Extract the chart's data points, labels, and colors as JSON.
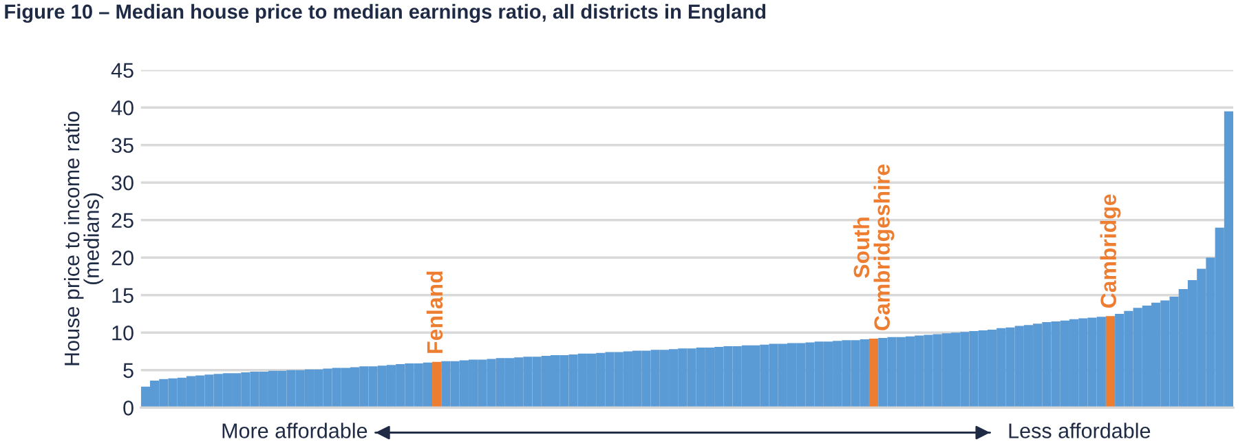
{
  "chart_data": {
    "type": "bar",
    "title": "Figure 10 – Median house price to median earnings ratio, all districts in England",
    "ylabel": "House price to income ratio\n(medians)",
    "categories": [
      null,
      null,
      null,
      null,
      null,
      null,
      null,
      null,
      null,
      null,
      null,
      null,
      null,
      null,
      null,
      null,
      null,
      null,
      null,
      null,
      null,
      null,
      null,
      null,
      null,
      null,
      null,
      null,
      null,
      null,
      null,
      null,
      null,
      null,
      null,
      null,
      null,
      null,
      null,
      null,
      null,
      null,
      null,
      null,
      null,
      null,
      null,
      null,
      null,
      null,
      null,
      null,
      null,
      null,
      null,
      null,
      null,
      null,
      null,
      null,
      null,
      null,
      null,
      null,
      null,
      null,
      null,
      null,
      null,
      null,
      null,
      null,
      null,
      null,
      null,
      null,
      null,
      null,
      null,
      null,
      null,
      null,
      null,
      null,
      null,
      null,
      null,
      null,
      null,
      null,
      null,
      null,
      null,
      null,
      null,
      null,
      null,
      null,
      null,
      null,
      null,
      null,
      null,
      null,
      null,
      null,
      null,
      null,
      null,
      null,
      null,
      null,
      null,
      null,
      null,
      null,
      null,
      null,
      null,
      null
    ],
    "values": [
      2.8,
      3.6,
      3.8,
      3.9,
      4.0,
      4.2,
      4.3,
      4.4,
      4.5,
      4.6,
      4.6,
      4.7,
      4.8,
      4.8,
      4.9,
      4.9,
      5.0,
      5.0,
      5.1,
      5.1,
      5.2,
      5.3,
      5.3,
      5.4,
      5.5,
      5.5,
      5.6,
      5.7,
      5.8,
      5.9,
      5.9,
      6.0,
      6.1,
      6.2,
      6.2,
      6.3,
      6.4,
      6.4,
      6.5,
      6.6,
      6.6,
      6.7,
      6.8,
      6.8,
      6.9,
      7.0,
      7.0,
      7.1,
      7.2,
      7.2,
      7.3,
      7.4,
      7.4,
      7.5,
      7.6,
      7.6,
      7.7,
      7.7,
      7.8,
      7.9,
      7.9,
      8.0,
      8.0,
      8.1,
      8.2,
      8.2,
      8.3,
      8.3,
      8.4,
      8.5,
      8.5,
      8.6,
      8.6,
      8.7,
      8.8,
      8.8,
      8.9,
      9.0,
      9.0,
      9.1,
      9.2,
      9.3,
      9.4,
      9.4,
      9.5,
      9.6,
      9.7,
      9.8,
      9.9,
      10.0,
      10.1,
      10.2,
      10.3,
      10.4,
      10.6,
      10.7,
      10.9,
      11.0,
      11.2,
      11.4,
      11.5,
      11.6,
      11.8,
      11.9,
      12.0,
      12.1,
      12.2,
      12.5,
      12.9,
      13.3,
      13.6,
      14.0,
      14.3,
      14.8,
      15.8,
      17.0,
      18.5,
      20.0,
      24.0,
      39.5
    ],
    "colors": [
      "#5b9bd5",
      "#5b9bd5",
      "#5b9bd5",
      "#5b9bd5",
      "#5b9bd5",
      "#5b9bd5",
      "#5b9bd5",
      "#5b9bd5",
      "#5b9bd5",
      "#5b9bd5",
      "#5b9bd5",
      "#5b9bd5",
      "#5b9bd5",
      "#5b9bd5",
      "#5b9bd5",
      "#5b9bd5",
      "#5b9bd5",
      "#5b9bd5",
      "#5b9bd5",
      "#5b9bd5",
      "#5b9bd5",
      "#5b9bd5",
      "#5b9bd5",
      "#5b9bd5",
      "#5b9bd5",
      "#5b9bd5",
      "#5b9bd5",
      "#5b9bd5",
      "#5b9bd5",
      "#5b9bd5",
      "#5b9bd5",
      "#5b9bd5",
      "#ed7d31",
      "#5b9bd5",
      "#5b9bd5",
      "#5b9bd5",
      "#5b9bd5",
      "#5b9bd5",
      "#5b9bd5",
      "#5b9bd5",
      "#5b9bd5",
      "#5b9bd5",
      "#5b9bd5",
      "#5b9bd5",
      "#5b9bd5",
      "#5b9bd5",
      "#5b9bd5",
      "#5b9bd5",
      "#5b9bd5",
      "#5b9bd5",
      "#5b9bd5",
      "#5b9bd5",
      "#5b9bd5",
      "#5b9bd5",
      "#5b9bd5",
      "#5b9bd5",
      "#5b9bd5",
      "#5b9bd5",
      "#5b9bd5",
      "#5b9bd5",
      "#5b9bd5",
      "#5b9bd5",
      "#5b9bd5",
      "#5b9bd5",
      "#5b9bd5",
      "#5b9bd5",
      "#5b9bd5",
      "#5b9bd5",
      "#5b9bd5",
      "#5b9bd5",
      "#5b9bd5",
      "#5b9bd5",
      "#5b9bd5",
      "#5b9bd5",
      "#5b9bd5",
      "#5b9bd5",
      "#5b9bd5",
      "#5b9bd5",
      "#5b9bd5",
      "#5b9bd5",
      "#ed7d31",
      "#5b9bd5",
      "#5b9bd5",
      "#5b9bd5",
      "#5b9bd5",
      "#5b9bd5",
      "#5b9bd5",
      "#5b9bd5",
      "#5b9bd5",
      "#5b9bd5",
      "#5b9bd5",
      "#5b9bd5",
      "#5b9bd5",
      "#5b9bd5",
      "#5b9bd5",
      "#5b9bd5",
      "#5b9bd5",
      "#5b9bd5",
      "#5b9bd5",
      "#5b9bd5",
      "#5b9bd5",
      "#5b9bd5",
      "#5b9bd5",
      "#5b9bd5",
      "#5b9bd5",
      "#5b9bd5",
      "#ed7d31",
      "#5b9bd5",
      "#5b9bd5",
      "#5b9bd5",
      "#5b9bd5",
      "#5b9bd5",
      "#5b9bd5",
      "#5b9bd5",
      "#5b9bd5",
      "#5b9bd5",
      "#5b9bd5",
      "#5b9bd5",
      "#5b9bd5",
      "#5b9bd5"
    ],
    "annotations": [
      "Fenland",
      "South\nCambridgeshire",
      "Cambridge",
      "More affordable",
      "Less affordable"
    ],
    "ylim": [
      0,
      45
    ],
    "yticks": [
      0,
      5,
      10,
      15,
      20,
      25,
      30,
      35,
      40,
      45
    ],
    "grid": "y",
    "legend": false
  }
}
